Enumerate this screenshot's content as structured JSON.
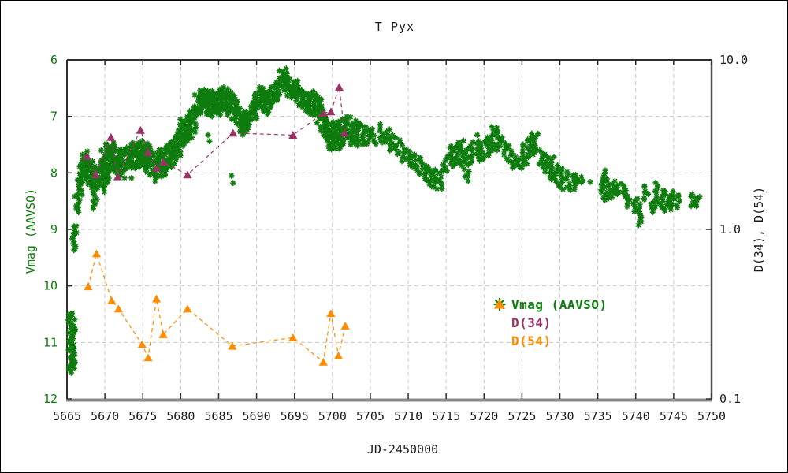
{
  "figure": {
    "title": "T Pyx",
    "background": "#ffffff"
  },
  "axes": {
    "x": {
      "label": "JD-2450000",
      "min": 5665,
      "max": 5750,
      "ticks": [
        5665,
        5670,
        5675,
        5680,
        5685,
        5690,
        5695,
        5700,
        5705,
        5710,
        5715,
        5720,
        5725,
        5730,
        5735,
        5740,
        5745,
        5750
      ],
      "color": "#1a1a1a"
    },
    "y_left": {
      "label": "Vmag (AAVSO)",
      "min": 6,
      "max": 12,
      "inverted": true,
      "ticks": [
        6,
        7,
        8,
        9,
        10,
        11,
        12
      ],
      "color": "#0e7c0e"
    },
    "y_right": {
      "label": "D(34), D(54)",
      "scale": "log",
      "min": 0.1,
      "max": 10.0,
      "tick_labels": [
        "10.0",
        "1.0",
        "0.1"
      ],
      "tick_values": [
        10.0,
        1.0,
        0.1
      ],
      "color": "#1a1a1a"
    },
    "grid": {
      "x_lines": [
        5670,
        5675,
        5680,
        5685,
        5690,
        5695,
        5700,
        5705,
        5710,
        5715,
        5720,
        5725,
        5730,
        5735,
        5740,
        5745
      ],
      "y_lines_mag": [
        7,
        8,
        9,
        10,
        11
      ],
      "color": "#c9c9c9"
    },
    "frame": {
      "top_left_color": "#2f2f2f",
      "right_color": "#555555",
      "bottom_color": "#8a8a8a"
    }
  },
  "legend": {
    "items": [
      {
        "label": "Vmag (AAVSO)",
        "marker": "asterisk-star",
        "color": "#0e7c0e"
      },
      {
        "label": "D(34)",
        "marker": "triangle",
        "color": "#993366"
      },
      {
        "label": "D(54)",
        "marker": "triangle",
        "color": "#ff8c00"
      }
    ]
  },
  "chart_data": {
    "type": "scatter",
    "title": "T Pyx",
    "xlabel": "JD-2450000",
    "ylabel_left": "Vmag (AAVSO)",
    "ylabel_right": "D(34), D(54)",
    "x_range": [
      5665,
      5750
    ],
    "y_left_range_mag": [
      6,
      12
    ],
    "y_right_range_log": [
      0.1,
      10.0
    ],
    "grid": true,
    "legend_position": "inside-right-middle",
    "series": [
      {
        "name": "Vmag (AAVSO)",
        "axis": "left",
        "marker": "asterisk",
        "color": "#0e7c0e",
        "band_note": "dense AAVSO visual/V light curve; entries are [JD, brightest_mag, faintest_mag] of each ~half-day cluster",
        "band": [
          [
            5665.5,
            10.5,
            11.55
          ],
          [
            5665.75,
            10.45,
            11.5
          ],
          [
            5666.0,
            8.9,
            9.4
          ],
          [
            5666.35,
            8.25,
            8.72
          ],
          [
            5666.7,
            8.08,
            8.4
          ],
          [
            5667.0,
            7.65,
            8.2
          ],
          [
            5667.35,
            7.6,
            8.1
          ],
          [
            5667.7,
            7.68,
            8.12
          ],
          [
            5668.05,
            7.78,
            8.2
          ],
          [
            5668.4,
            7.85,
            8.3
          ],
          [
            5668.75,
            7.95,
            8.65
          ],
          [
            5669.1,
            7.9,
            8.3
          ],
          [
            5669.45,
            7.82,
            8.22
          ],
          [
            5669.8,
            7.6,
            8.15
          ],
          [
            5670.15,
            7.48,
            8.35
          ],
          [
            5670.5,
            7.5,
            8.1
          ],
          [
            5670.9,
            7.45,
            7.98
          ],
          [
            5671.3,
            7.5,
            8.0
          ],
          [
            5671.7,
            7.55,
            8.02
          ],
          [
            5672.1,
            7.6,
            8.05
          ],
          [
            5672.5,
            7.58,
            8.0
          ],
          [
            5672.9,
            7.52,
            7.95
          ],
          [
            5673.3,
            7.48,
            7.92
          ],
          [
            5673.7,
            7.45,
            7.9
          ],
          [
            5674.1,
            7.5,
            7.95
          ],
          [
            5674.5,
            7.47,
            7.93
          ],
          [
            5674.9,
            7.42,
            7.9
          ],
          [
            5675.3,
            7.45,
            7.92
          ],
          [
            5675.7,
            7.52,
            8.0
          ],
          [
            5676.1,
            7.55,
            8.05
          ],
          [
            5676.5,
            7.6,
            8.08
          ],
          [
            5676.9,
            7.65,
            8.15
          ],
          [
            5677.3,
            7.6,
            8.1
          ],
          [
            5677.7,
            7.55,
            8.05
          ],
          [
            5678.1,
            7.5,
            7.97
          ],
          [
            5678.5,
            7.46,
            7.92
          ],
          [
            5678.9,
            7.42,
            7.88
          ],
          [
            5679.3,
            7.35,
            7.8
          ],
          [
            5679.7,
            7.25,
            7.72
          ],
          [
            5680.1,
            7.05,
            7.56
          ],
          [
            5680.5,
            7.0,
            7.5
          ],
          [
            5680.9,
            6.95,
            7.46
          ],
          [
            5681.3,
            6.9,
            7.42
          ],
          [
            5681.7,
            6.82,
            7.3
          ],
          [
            5682.1,
            6.58,
            7.02
          ],
          [
            5682.5,
            6.52,
            6.97
          ],
          [
            5682.9,
            6.5,
            6.95
          ],
          [
            5683.3,
            6.53,
            6.98
          ],
          [
            5683.7,
            6.55,
            7.0
          ],
          [
            5684.1,
            6.58,
            7.03
          ],
          [
            5684.5,
            6.52,
            6.97
          ],
          [
            5684.9,
            6.55,
            7.0
          ],
          [
            5685.3,
            6.5,
            6.93
          ],
          [
            5685.7,
            6.47,
            6.9
          ],
          [
            5686.1,
            6.5,
            6.93
          ],
          [
            5686.5,
            6.55,
            6.98
          ],
          [
            5686.9,
            6.6,
            7.05
          ],
          [
            5687.3,
            6.7,
            7.12
          ],
          [
            5687.7,
            6.82,
            7.22
          ],
          [
            5688.1,
            6.9,
            7.3
          ],
          [
            5688.5,
            6.95,
            7.35
          ],
          [
            5688.9,
            6.88,
            7.28
          ],
          [
            5689.3,
            6.75,
            7.15
          ],
          [
            5689.7,
            6.62,
            7.05
          ],
          [
            5690.1,
            6.52,
            6.95
          ],
          [
            5690.5,
            6.45,
            6.87
          ],
          [
            5690.9,
            6.48,
            6.9
          ],
          [
            5691.3,
            6.52,
            6.95
          ],
          [
            5691.7,
            6.55,
            6.98
          ],
          [
            5692.1,
            6.48,
            6.88
          ],
          [
            5692.5,
            6.4,
            6.76
          ],
          [
            5692.9,
            6.32,
            6.66
          ],
          [
            5693.3,
            6.18,
            6.52
          ],
          [
            5693.6,
            6.13,
            6.45
          ],
          [
            5693.9,
            6.2,
            6.55
          ],
          [
            5694.3,
            6.3,
            6.63
          ],
          [
            5694.7,
            6.38,
            6.7
          ],
          [
            5695.1,
            6.35,
            6.68
          ],
          [
            5695.5,
            6.44,
            6.78
          ],
          [
            5695.9,
            6.5,
            6.84
          ],
          [
            5696.3,
            6.53,
            6.9
          ],
          [
            5696.7,
            6.57,
            6.95
          ],
          [
            5697.1,
            6.6,
            7.0
          ],
          [
            5697.5,
            6.55,
            6.95
          ],
          [
            5697.9,
            6.6,
            7.02
          ],
          [
            5698.3,
            6.68,
            7.12
          ],
          [
            5698.7,
            6.8,
            7.3
          ],
          [
            5699.1,
            6.95,
            7.45
          ],
          [
            5699.5,
            7.02,
            7.55
          ],
          [
            5699.9,
            7.1,
            7.62
          ],
          [
            5700.3,
            7.1,
            7.6
          ],
          [
            5700.7,
            7.08,
            7.58
          ],
          [
            5701.1,
            7.05,
            7.55
          ],
          [
            5701.6,
            6.98,
            7.5
          ],
          [
            5702.2,
            7.0,
            7.5
          ],
          [
            5702.8,
            7.05,
            7.5
          ],
          [
            5703.4,
            7.1,
            7.52
          ],
          [
            5704.0,
            7.13,
            7.52
          ],
          [
            5704.7,
            7.17,
            7.52
          ],
          [
            5705.4,
            7.2,
            7.52
          ],
          [
            5706.6,
            7.2,
            7.5
          ],
          [
            5707.2,
            7.22,
            7.5
          ],
          [
            5707.9,
            7.3,
            7.62
          ],
          [
            5708.6,
            7.35,
            7.68
          ],
          [
            5709.3,
            7.5,
            7.82
          ],
          [
            5710.0,
            7.58,
            7.88
          ],
          [
            5710.7,
            7.65,
            7.95
          ],
          [
            5711.4,
            7.72,
            8.05
          ],
          [
            5712.1,
            7.82,
            8.15
          ],
          [
            5712.8,
            7.88,
            8.25
          ],
          [
            5713.5,
            7.93,
            8.3
          ],
          [
            5714.2,
            7.95,
            8.3
          ],
          [
            5714.9,
            7.68,
            8.0
          ],
          [
            5715.6,
            7.5,
            7.9
          ],
          [
            5716.3,
            7.45,
            7.87
          ],
          [
            5717.0,
            7.43,
            7.9
          ],
          [
            5717.7,
            7.55,
            8.15
          ],
          [
            5718.4,
            7.45,
            7.85
          ],
          [
            5719.1,
            7.43,
            7.8
          ],
          [
            5719.8,
            7.42,
            7.78
          ],
          [
            5720.5,
            7.35,
            7.72
          ],
          [
            5721.2,
            7.17,
            7.62
          ],
          [
            5721.9,
            7.2,
            7.6
          ],
          [
            5722.6,
            7.35,
            7.7
          ],
          [
            5723.3,
            7.5,
            7.8
          ],
          [
            5724.0,
            7.7,
            7.95
          ],
          [
            5724.7,
            7.73,
            7.95
          ],
          [
            5725.4,
            7.42,
            7.9
          ],
          [
            5726.1,
            7.3,
            7.76
          ],
          [
            5726.8,
            7.3,
            7.7
          ],
          [
            5727.5,
            7.58,
            7.94
          ],
          [
            5728.2,
            7.64,
            8.0
          ],
          [
            5728.9,
            7.7,
            8.14
          ],
          [
            5729.6,
            7.84,
            8.24
          ],
          [
            5730.3,
            7.9,
            8.3
          ],
          [
            5731.0,
            7.98,
            8.34
          ],
          [
            5731.7,
            8.0,
            8.3
          ],
          [
            5732.4,
            8.02,
            8.22
          ],
          [
            5733.1,
            8.05,
            8.2
          ],
          [
            5735.7,
            7.95,
            8.5
          ],
          [
            5736.4,
            8.1,
            8.45
          ],
          [
            5737.1,
            8.14,
            8.44
          ],
          [
            5737.8,
            8.15,
            8.4
          ],
          [
            5738.5,
            8.2,
            8.46
          ],
          [
            5739.2,
            8.4,
            8.6
          ],
          [
            5739.9,
            8.44,
            8.7
          ],
          [
            5740.6,
            8.55,
            8.95
          ],
          [
            5741.4,
            8.2,
            8.5
          ],
          [
            5742.1,
            8.5,
            8.72
          ],
          [
            5742.8,
            8.15,
            8.6
          ],
          [
            5743.5,
            8.3,
            8.7
          ],
          [
            5744.2,
            8.3,
            8.66
          ],
          [
            5744.9,
            8.32,
            8.66
          ],
          [
            5745.5,
            8.36,
            8.64
          ],
          [
            5747.5,
            8.35,
            8.6
          ],
          [
            5748.2,
            8.4,
            8.6
          ]
        ],
        "isolated_points": [
          [
            5668.4,
            8.22
          ],
          [
            5672.6,
            8.09
          ],
          [
            5673.5,
            8.09
          ],
          [
            5683.6,
            7.33
          ],
          [
            5683.8,
            7.44
          ],
          [
            5686.7,
            8.05
          ],
          [
            5686.9,
            8.18
          ],
          [
            5706.3,
            7.14
          ],
          [
            5719.1,
            7.33
          ],
          [
            5734.0,
            8.16
          ],
          [
            5740.0,
            8.48
          ]
        ]
      },
      {
        "name": "D(34)",
        "axis": "right",
        "marker": "triangle",
        "color": "#993366",
        "line": "dashed",
        "points": [
          [
            5667.6,
            2.7
          ],
          [
            5668.8,
            2.1
          ],
          [
            5670.8,
            3.5
          ],
          [
            5671.7,
            2.05
          ],
          [
            5674.7,
            3.85
          ],
          [
            5675.7,
            2.85
          ],
          [
            5676.8,
            2.3
          ],
          [
            5677.7,
            2.5
          ],
          [
            5680.9,
            2.1
          ],
          [
            5686.9,
            3.7
          ],
          [
            5694.8,
            3.6
          ],
          [
            5698.8,
            4.85
          ],
          [
            5699.8,
            4.95
          ],
          [
            5700.9,
            6.9
          ],
          [
            5701.6,
            3.7
          ]
        ]
      },
      {
        "name": "D(54)",
        "axis": "right",
        "marker": "triangle",
        "color": "#ff8c00",
        "line": "dashed",
        "points": [
          [
            5667.8,
            0.46
          ],
          [
            5668.9,
            0.72
          ],
          [
            5670.9,
            0.38
          ],
          [
            5671.8,
            0.34
          ],
          [
            5674.9,
            0.21
          ],
          [
            5675.7,
            0.175
          ],
          [
            5676.8,
            0.39
          ],
          [
            5677.7,
            0.24
          ],
          [
            5680.9,
            0.34
          ],
          [
            5686.8,
            0.205
          ],
          [
            5694.8,
            0.23
          ],
          [
            5698.8,
            0.165
          ],
          [
            5699.8,
            0.32
          ],
          [
            5700.8,
            0.18
          ],
          [
            5701.7,
            0.27
          ]
        ]
      }
    ]
  }
}
